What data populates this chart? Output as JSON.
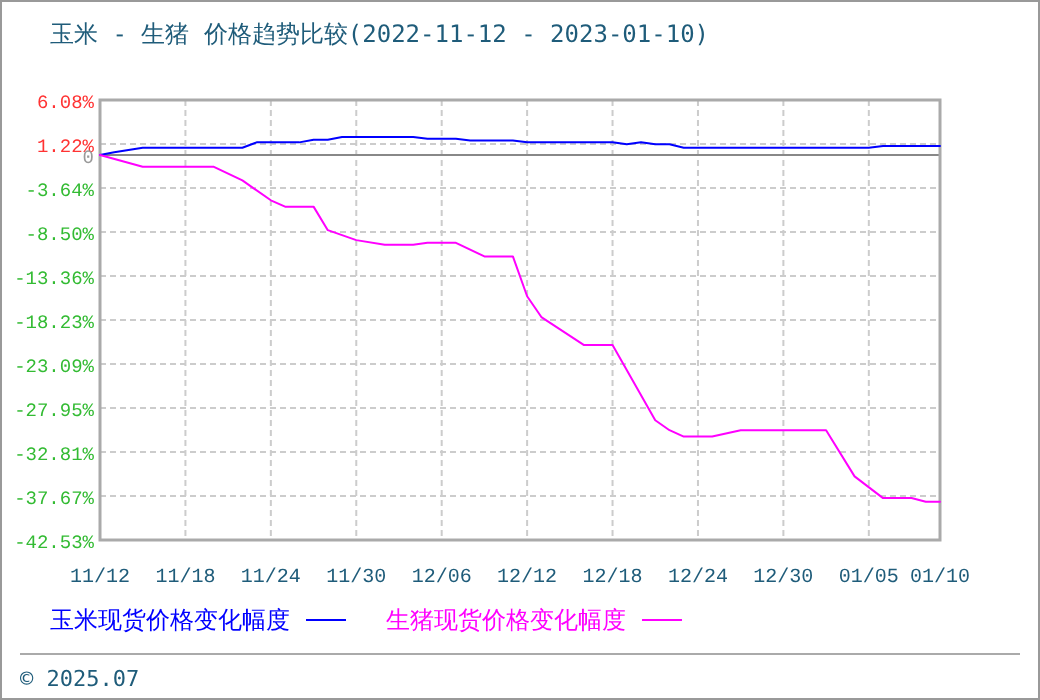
{
  "chart_data": {
    "type": "line",
    "title": "玉米 - 生猪 价格趋势比较(2022-11-12 - 2023-01-10)",
    "xlim": [
      "2022-11-12",
      "2023-01-10"
    ],
    "xticks": [
      {
        "value": "2022-11-12",
        "label": "11/12"
      },
      {
        "value": "2022-11-18",
        "label": "11/18"
      },
      {
        "value": "2022-11-24",
        "label": "11/24"
      },
      {
        "value": "2022-11-30",
        "label": "11/30"
      },
      {
        "value": "2022-12-06",
        "label": "12/06"
      },
      {
        "value": "2022-12-12",
        "label": "12/12"
      },
      {
        "value": "2022-12-18",
        "label": "12/18"
      },
      {
        "value": "2022-12-24",
        "label": "12/24"
      },
      {
        "value": "2022-12-30",
        "label": "12/30"
      },
      {
        "value": "2023-01-05",
        "label": "01/05"
      },
      {
        "value": "2023-01-10",
        "label": "01/10"
      }
    ],
    "ylim": [
      -42.53,
      6.08
    ],
    "yticks": [
      {
        "value": 6.08,
        "label": "6.08%"
      },
      {
        "value": 1.22,
        "label": "1.22%"
      },
      0,
      {
        "value": -3.64,
        "label": "-3.64%"
      },
      {
        "value": -8.5,
        "label": "-8.50%"
      },
      {
        "value": -13.36,
        "label": "-13.36%"
      },
      {
        "value": -18.23,
        "label": "-18.23%"
      },
      {
        "value": -23.09,
        "label": "-23.09%"
      },
      {
        "value": -27.95,
        "label": "-27.95%"
      },
      {
        "value": -32.81,
        "label": "-32.81%"
      },
      {
        "value": -37.67,
        "label": "-37.67%"
      },
      {
        "value": -42.53,
        "label": "-42.53%"
      }
    ],
    "grid": true,
    "legend": "bottom",
    "line_style": "solid",
    "series": [
      {
        "name": "玉米现货价格变化幅度",
        "color": "#0000ff",
        "x": [
          "2022-11-12",
          "2022-11-13",
          "2022-11-15",
          "2022-11-22",
          "2022-11-23",
          "2022-11-26",
          "2022-11-27",
          "2022-11-28",
          "2022-11-29",
          "2022-12-04",
          "2022-12-05",
          "2022-12-07",
          "2022-12-08",
          "2022-12-11",
          "2022-12-12",
          "2022-12-18",
          "2022-12-19",
          "2022-12-20",
          "2022-12-21",
          "2022-12-22",
          "2022-12-23",
          "2023-01-05",
          "2023-01-06",
          "2023-01-10"
        ],
        "values": [
          0,
          0.3,
          0.8,
          0.8,
          1.4,
          1.4,
          1.7,
          1.7,
          2.0,
          2.0,
          1.8,
          1.8,
          1.6,
          1.6,
          1.4,
          1.4,
          1.2,
          1.4,
          1.2,
          1.2,
          0.8,
          0.8,
          1.0,
          1.0
        ]
      },
      {
        "name": "生猪现货价格变化幅度",
        "color": "#ff00ff",
        "x": [
          "2022-11-12",
          "2022-11-15",
          "2022-11-20",
          "2022-11-22",
          "2022-11-24",
          "2022-11-25",
          "2022-11-27",
          "2022-11-28",
          "2022-11-30",
          "2022-12-02",
          "2022-12-04",
          "2022-12-05",
          "2022-12-07",
          "2022-12-09",
          "2022-12-11",
          "2022-12-12",
          "2022-12-13",
          "2022-12-16",
          "2022-12-18",
          "2022-12-21",
          "2022-12-22",
          "2022-12-23",
          "2022-12-25",
          "2022-12-27",
          "2023-01-02",
          "2023-01-04",
          "2023-01-06",
          "2023-01-08",
          "2023-01-09",
          "2023-01-10"
        ],
        "values": [
          0,
          -1.3,
          -1.3,
          -2.8,
          -5.0,
          -5.7,
          -5.7,
          -8.3,
          -9.4,
          -9.9,
          -9.9,
          -9.7,
          -9.7,
          -11.2,
          -11.2,
          -15.6,
          -17.9,
          -21.0,
          -21.0,
          -29.3,
          -30.4,
          -31.1,
          -31.1,
          -30.4,
          -30.4,
          -35.5,
          -37.9,
          -37.9,
          -38.3,
          -38.3
        ]
      }
    ],
    "annotations": [
      "© 2025.07"
    ]
  }
}
